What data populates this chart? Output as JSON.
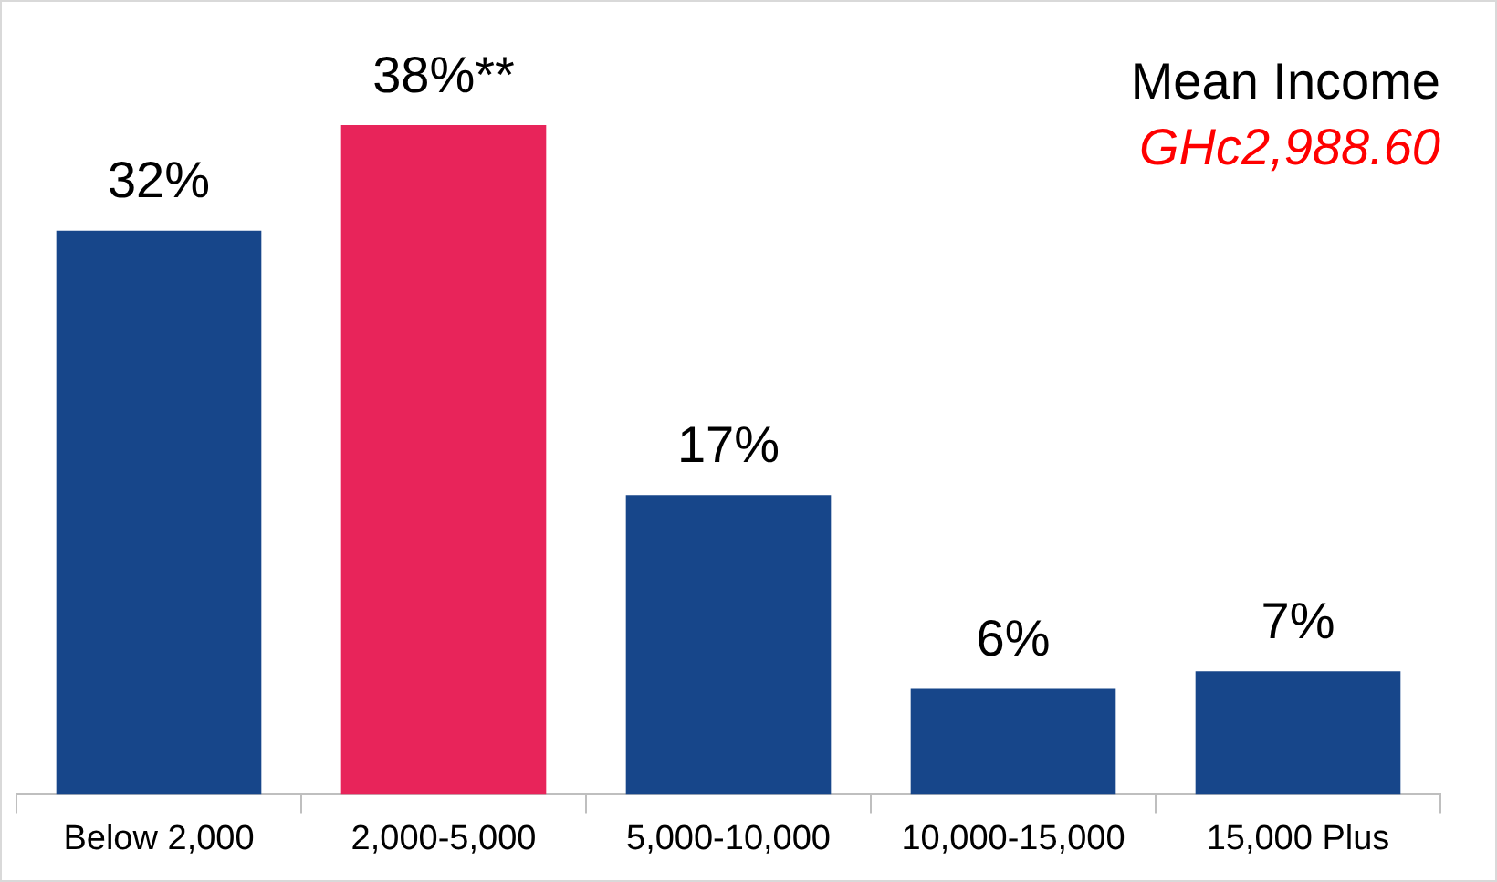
{
  "chart_data": {
    "type": "bar",
    "categories": [
      "Below 2,000",
      "2,000-5,000",
      "5,000-10,000",
      "10,000-15,000",
      "15,000 Plus"
    ],
    "values": [
      32,
      38,
      17,
      6,
      7
    ],
    "colors": [
      "#17468a",
      "#e8245a",
      "#17468a",
      "#17468a",
      "#17468a"
    ],
    "value_labels": [
      "32%",
      "38%**",
      "17%",
      "6%",
      "7%"
    ],
    "annotations": [
      "Mean Income",
      "GHc2,988.60"
    ],
    "grid": false,
    "legend": false
  }
}
